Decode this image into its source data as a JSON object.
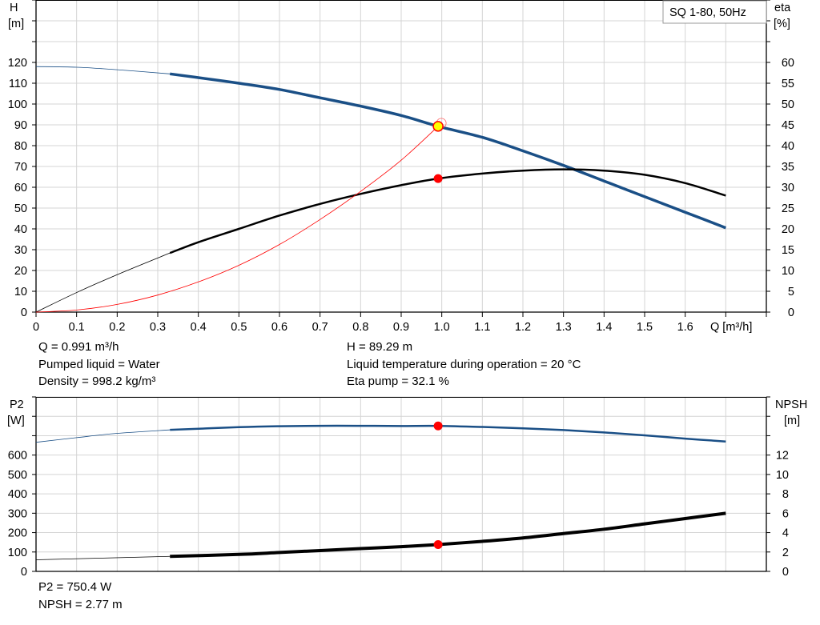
{
  "chart_data": [
    {
      "type": "line",
      "title_box": "SQ 1-80, 50Hz",
      "xlabel": "Q [m³/h]",
      "xlim": [
        0,
        1.8
      ],
      "xticks": [
        "0",
        "0.1",
        "0.2",
        "0.3",
        "0.4",
        "0.5",
        "0.6",
        "0.7",
        "0.8",
        "0.9",
        "1.0",
        "1.1",
        "1.2",
        "1.3",
        "1.4",
        "1.5",
        "1.6"
      ],
      "ylabel_left": [
        "H",
        "[m]"
      ],
      "ylim_left": [
        0,
        150
      ],
      "yticks_left": [
        "0",
        "10",
        "20",
        "30",
        "40",
        "50",
        "60",
        "70",
        "80",
        "90",
        "100",
        "110",
        "120"
      ],
      "ylabel_right": [
        "eta",
        "[%]"
      ],
      "ylim_right": [
        0,
        75
      ],
      "yticks_right": [
        "0",
        "5",
        "10",
        "15",
        "20",
        "25",
        "30",
        "35",
        "40",
        "45",
        "50",
        "55",
        "60"
      ],
      "grid": true,
      "series": [
        {
          "key": "H",
          "axis": "left",
          "color": "#1a4f86",
          "x": [
            0,
            0.1,
            0.2,
            0.33,
            0.4,
            0.5,
            0.6,
            0.7,
            0.8,
            0.9,
            0.991,
            1.1,
            1.2,
            1.3,
            1.4,
            1.5,
            1.6,
            1.7
          ],
          "y": [
            118,
            117.7,
            116.5,
            114.5,
            112.7,
            110,
            107,
            103,
            99,
            94.5,
            89.3,
            84,
            77.5,
            70.5,
            63,
            55.5,
            48,
            40.5
          ]
        },
        {
          "key": "eta",
          "axis": "right",
          "color": "#000000",
          "x": [
            0,
            0.1,
            0.2,
            0.33,
            0.4,
            0.5,
            0.6,
            0.7,
            0.8,
            0.9,
            0.991,
            1.1,
            1.2,
            1.3,
            1.4,
            1.5,
            1.6,
            1.7
          ],
          "y": [
            0,
            4.7,
            9,
            14.2,
            16.8,
            20,
            23.2,
            26,
            28.4,
            30.5,
            32.1,
            33.3,
            34,
            34.3,
            34,
            33,
            31,
            28
          ]
        },
        {
          "key": "system",
          "axis": "left",
          "color": "#ff0000",
          "x": [
            0,
            0.1,
            0.2,
            0.3,
            0.4,
            0.5,
            0.6,
            0.7,
            0.8,
            0.9,
            0.991
          ],
          "y": [
            0,
            1,
            3.7,
            8.2,
            14.5,
            22.5,
            32.5,
            44.5,
            58,
            73,
            89.29
          ]
        }
      ],
      "duty_point": {
        "Q": 0.991,
        "H": 89.29,
        "eta": 32.1
      }
    },
    {
      "type": "line",
      "xlim": [
        0,
        1.8
      ],
      "ylabel_left": [
        "P2",
        "[W]"
      ],
      "ylim_left": [
        0,
        900
      ],
      "yticks_left": [
        "0",
        "100",
        "200",
        "300",
        "400",
        "500",
        "600"
      ],
      "ylabel_right": [
        "NPSH",
        "[m]"
      ],
      "ylim_right": [
        0,
        18
      ],
      "yticks_right": [
        "0",
        "2",
        "4",
        "6",
        "8",
        "10",
        "12"
      ],
      "grid": true,
      "series": [
        {
          "key": "P2",
          "axis": "left",
          "color": "#1a4f86",
          "x": [
            0,
            0.1,
            0.2,
            0.33,
            0.5,
            0.6,
            0.7,
            0.8,
            0.9,
            0.991,
            1.1,
            1.2,
            1.3,
            1.4,
            1.5,
            1.6,
            1.7
          ],
          "y": [
            666,
            690,
            712,
            730,
            744,
            749,
            751,
            751,
            750,
            750.4,
            745,
            738,
            729,
            717,
            702,
            685,
            670
          ]
        },
        {
          "key": "NPSH",
          "axis": "right",
          "color": "#000000",
          "x": [
            0,
            0.33,
            0.5,
            0.6,
            0.7,
            0.8,
            0.9,
            0.991,
            1.1,
            1.2,
            1.3,
            1.4,
            1.5,
            1.6,
            1.7
          ],
          "y": [
            1.2,
            1.55,
            1.75,
            1.95,
            2.15,
            2.35,
            2.55,
            2.77,
            3.1,
            3.45,
            3.9,
            4.35,
            4.9,
            5.45,
            6.0
          ]
        }
      ],
      "duty_point": {
        "Q": 0.991,
        "P2": 750.4,
        "NPSH": 2.77
      }
    }
  ],
  "info": {
    "q": "Q = 0.991 m³/h",
    "liquid": "Pumped liquid = Water",
    "density": "Density = 998.2 kg/m³",
    "h": "H = 89.29 m",
    "temp": "Liquid temperature during operation = 20 °C",
    "eta": "Eta pump = 32.1 %",
    "p2": "P2 = 750.4 W",
    "npsh": "NPSH = 2.77 m"
  }
}
